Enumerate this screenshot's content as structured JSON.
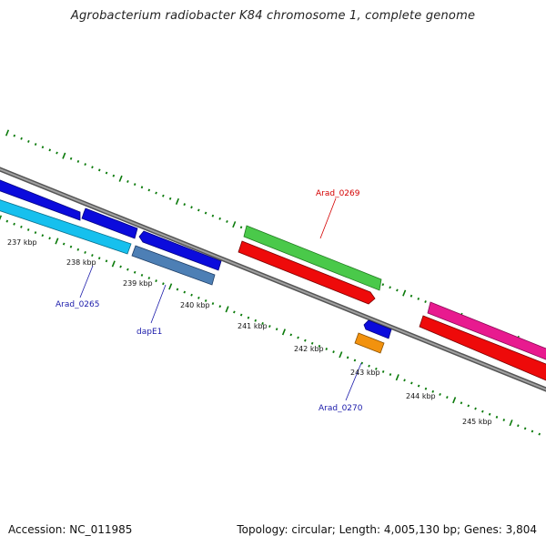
{
  "title": "Agrobacterium radiobacter K84 chromosome 1, complete genome",
  "footer": {
    "accession": "Accession: NC_011985",
    "summary": "Topology: circular; Length: 4,005,130 bp; Genes: 3,804"
  },
  "tick_labels": [
    "237 kbp",
    "238 kbp",
    "239 kbp",
    "240 kbp",
    "241 kbp",
    "242 kbp",
    "243 kbp",
    "244 kbp",
    "245 kbp"
  ],
  "gene_labels": [
    {
      "name": "Arad_0269",
      "color": "#d40000"
    },
    {
      "name": "Arad_0265",
      "color": "#1a1aaa"
    },
    {
      "name": "dapE1",
      "color": "#1a1aaa"
    },
    {
      "name": "Arad_0270",
      "color": "#1a1aaa"
    }
  ],
  "colors": {
    "backbone": "#8a8a8a",
    "tick": "#0a7a0a",
    "blue": "#0b0bdc",
    "cyan": "#16c0ee",
    "steel": "#4d7fb5",
    "green": "#4ac94a",
    "red": "#ee0a0a",
    "magenta": "#e81a8f",
    "orange": "#f2920e"
  }
}
